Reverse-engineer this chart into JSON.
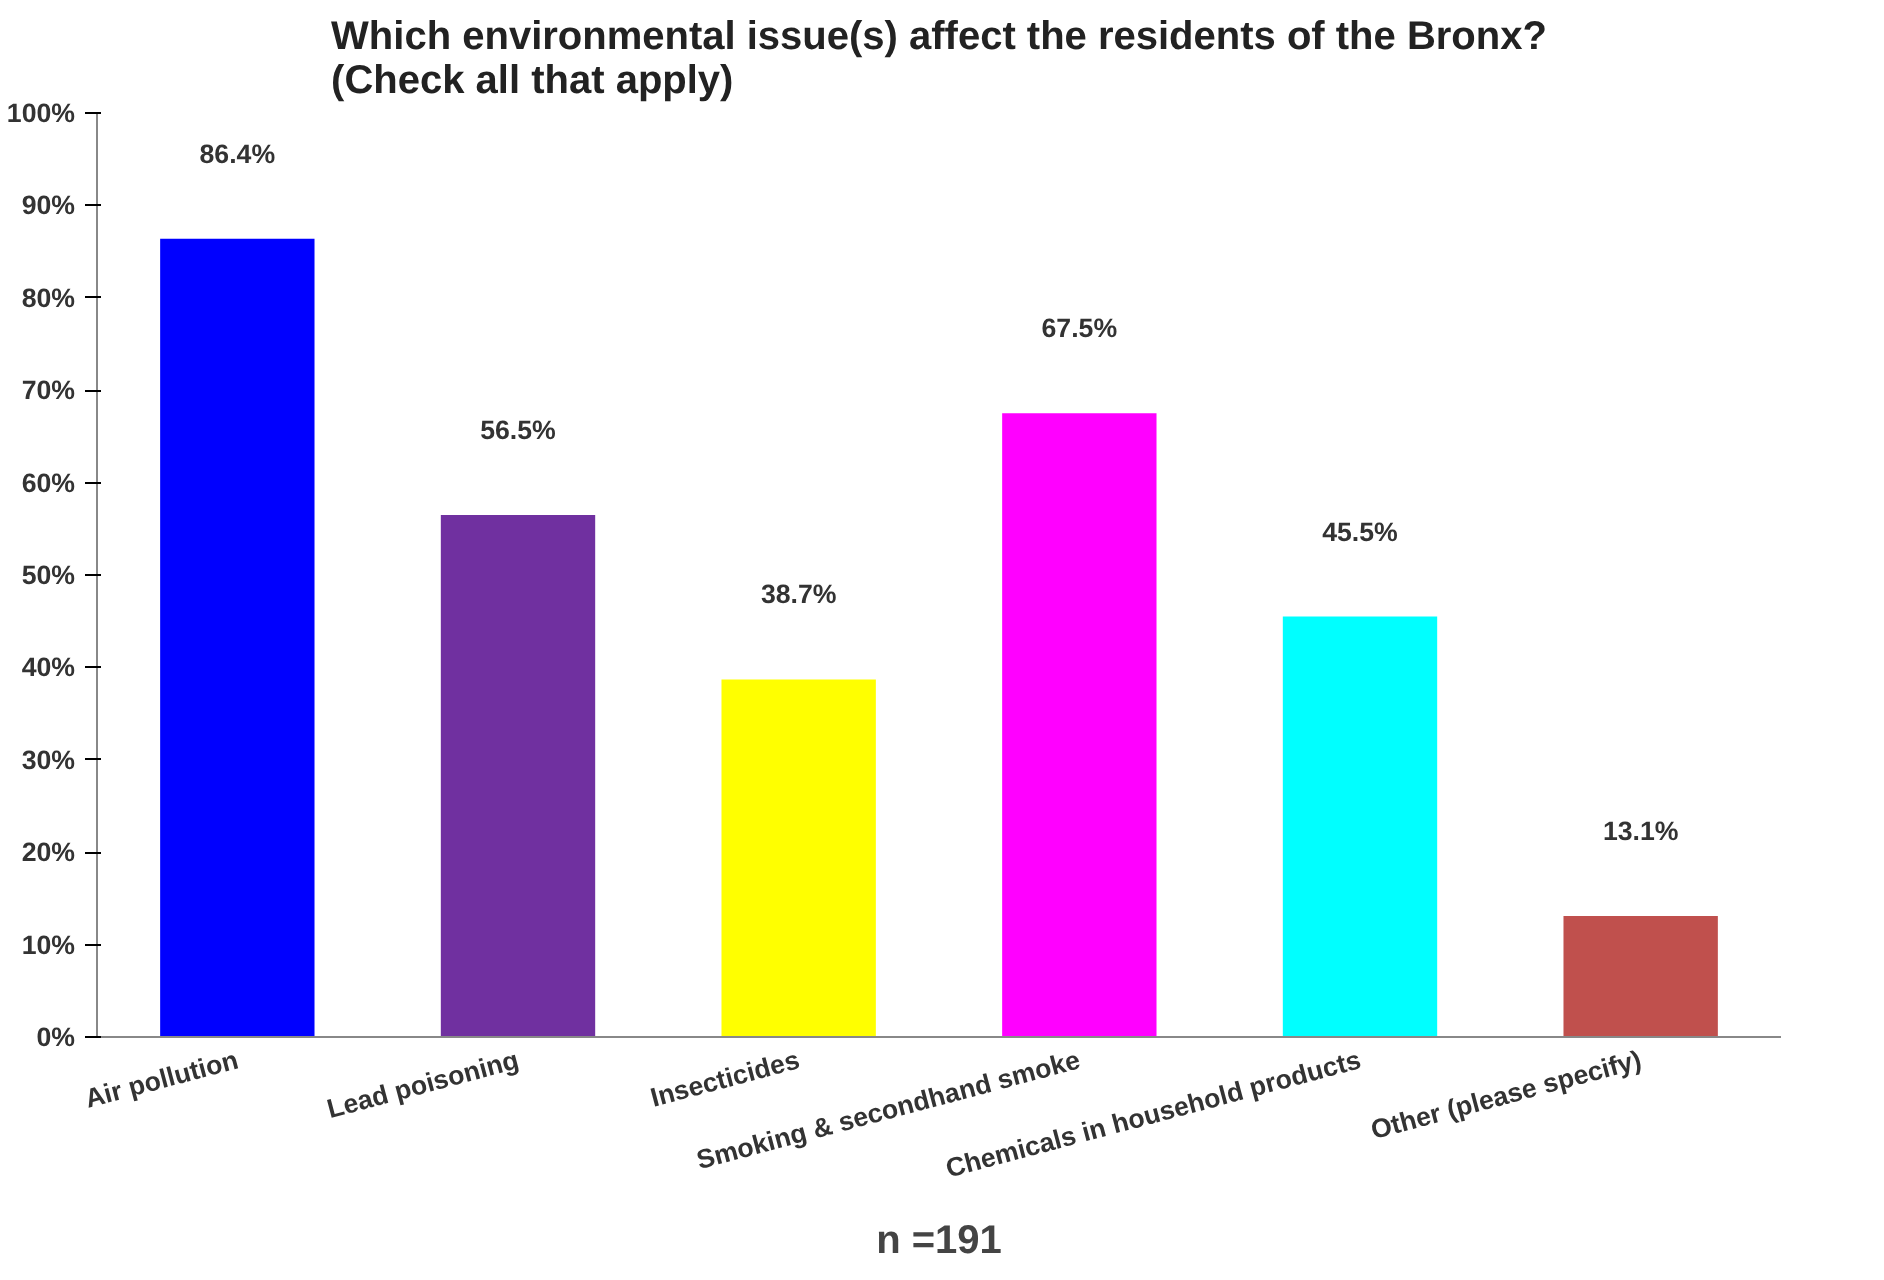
{
  "chart_data": {
    "type": "bar",
    "title": "Which environmental issue(s) affect the residents of the Bronx?\n(Check all that apply)",
    "categories": [
      "Air pollution",
      "Lead poisoning",
      "Insecticides",
      "Smoking & secondhand smoke",
      "Chemicals in household products",
      "Other (please specify)"
    ],
    "values": [
      86.4,
      56.5,
      38.7,
      67.5,
      45.5,
      13.1
    ],
    "colors": [
      "#0000ff",
      "#7030a0",
      "#ffff00",
      "#ff00ff",
      "#00ffff",
      "#c0504d"
    ],
    "value_labels": [
      "86.4%",
      "56.5%",
      "38.7%",
      "67.5%",
      "45.5%",
      "13.1%"
    ],
    "ylim": [
      0,
      100
    ],
    "yticks": [
      {
        "value": 0,
        "label": "0%"
      },
      {
        "value": 10,
        "label": "10%"
      },
      {
        "value": 20,
        "label": "20%"
      },
      {
        "value": 30,
        "label": "30%"
      },
      {
        "value": 40,
        "label": "40%"
      },
      {
        "value": 50,
        "label": "50%"
      },
      {
        "value": 60,
        "label": "60%"
      },
      {
        "value": 70,
        "label": "70%"
      },
      {
        "value": 80,
        "label": "80%"
      },
      {
        "value": 90,
        "label": "90%"
      },
      {
        "value": 100,
        "label": "100%"
      }
    ],
    "grid": false,
    "annotations": [
      "n =191"
    ]
  }
}
